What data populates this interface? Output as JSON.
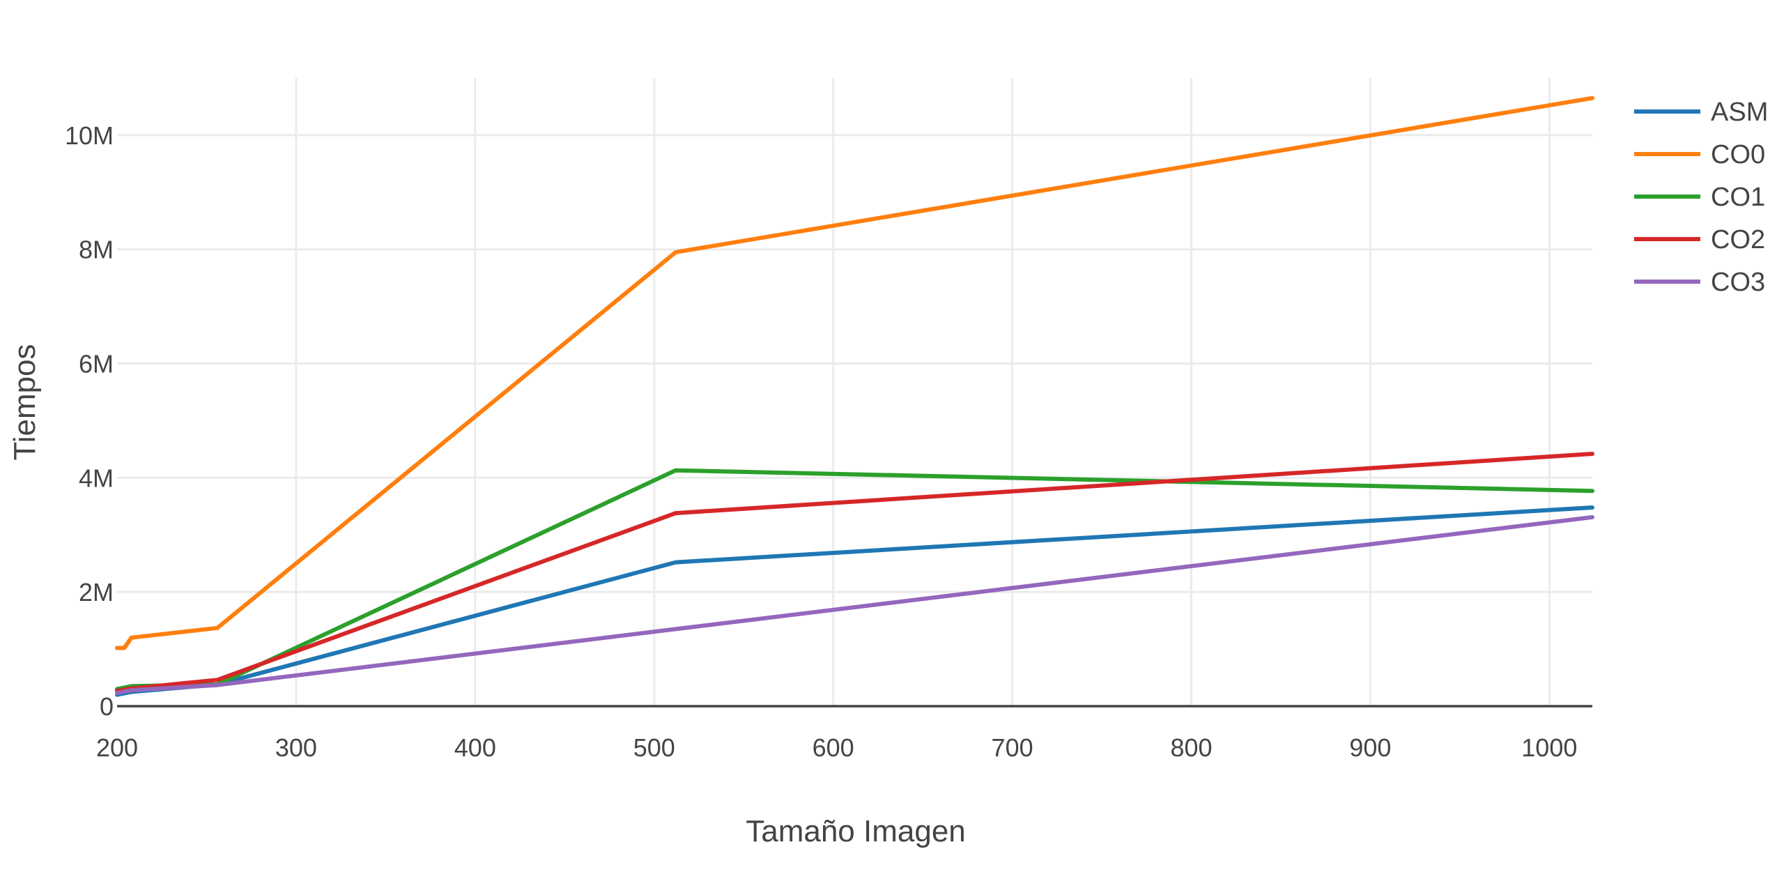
{
  "chart_data": {
    "type": "line",
    "xlabel": "Tamaño Imagen",
    "ylabel": "Tiempos",
    "xlim": [
      200,
      1024
    ],
    "ylim": [
      0,
      11000000
    ],
    "grid": true,
    "legend_position": "right",
    "x_ticks": [
      200,
      300,
      400,
      500,
      600,
      700,
      800,
      900,
      1000
    ],
    "x_tick_labels": [
      "200",
      "300",
      "400",
      "500",
      "600",
      "700",
      "800",
      "900",
      "1000"
    ],
    "y_ticks": [
      0,
      2000000,
      4000000,
      6000000,
      8000000,
      10000000
    ],
    "y_tick_labels": [
      "0",
      "2M",
      "4M",
      "6M",
      "8M",
      "10M"
    ],
    "series": [
      {
        "name": "ASM",
        "color": "#1f77b4",
        "x": [
          200,
          208,
          256,
          512,
          1024
        ],
        "y": [
          200000,
          250000,
          380000,
          2520000,
          3480000
        ]
      },
      {
        "name": "CO0",
        "color": "#ff7f0e",
        "x": [
          200,
          204,
          208,
          256,
          512,
          1024
        ],
        "y": [
          1020000,
          1020000,
          1200000,
          1370000,
          7950000,
          10650000
        ]
      },
      {
        "name": "CO1",
        "color": "#2ca02c",
        "x": [
          200,
          208,
          256,
          512,
          1024
        ],
        "y": [
          300000,
          350000,
          380000,
          4130000,
          3770000
        ]
      },
      {
        "name": "CO2",
        "color": "#d62728",
        "x": [
          200,
          208,
          256,
          512,
          1024
        ],
        "y": [
          270000,
          310000,
          460000,
          3380000,
          4420000
        ]
      },
      {
        "name": "CO3",
        "color": "#9467bd",
        "x": [
          200,
          208,
          256,
          512,
          1024
        ],
        "y": [
          230000,
          280000,
          370000,
          1350000,
          3310000
        ]
      }
    ]
  }
}
